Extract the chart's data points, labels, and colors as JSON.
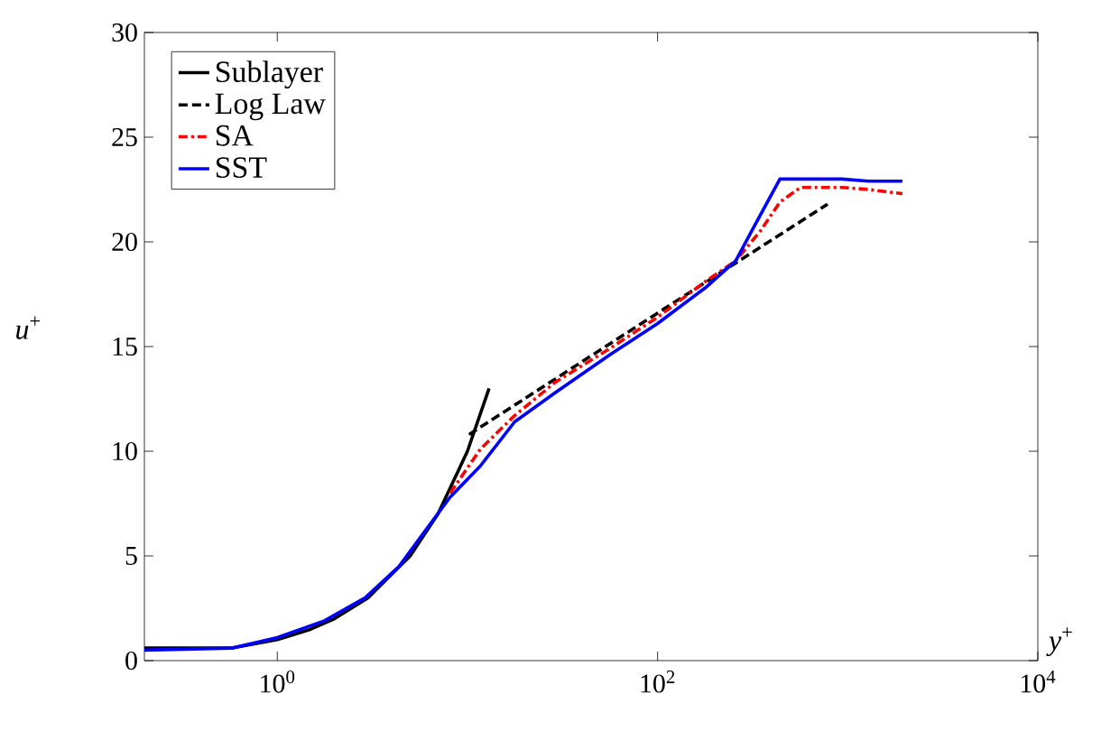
{
  "chart_data": {
    "type": "line",
    "xlabel": "*y*$^{+}$",
    "ylabel": "*u*$^{+}$",
    "log": "x",
    "xlim": [
      0.2,
      10000
    ],
    "ylim": [
      0,
      30
    ],
    "xticks": [
      {
        "value": 1,
        "label": "10$^{0}$"
      },
      {
        "value": 100,
        "label": "10$^{2}$"
      },
      {
        "value": 10000,
        "label": "10$^{4}$"
      }
    ],
    "yticks": [
      0,
      5,
      10,
      15,
      20,
      25,
      30
    ],
    "grid": false,
    "legend": "top left",
    "series": [
      {
        "name": "Sublayer",
        "color": "#000000",
        "line_style": "solid",
        "x": [
          0.2,
          0.58,
          1,
          1.5,
          2,
          3,
          5,
          7,
          10,
          13
        ],
        "values": [
          0.6,
          0.6,
          1,
          1.5,
          2,
          3,
          5,
          7,
          10,
          13
        ]
      },
      {
        "name": "Log Law",
        "color": "#000000",
        "line_style": "dashed",
        "x": [
          10.2,
          100,
          784
        ],
        "values": [
          10.8,
          16.6,
          21.8
        ]
      },
      {
        "name": "SA",
        "color": "#ff0000",
        "line_style": "dashdot",
        "x": [
          8.1,
          11.7,
          17.7,
          29,
          56,
          100,
          178,
          258,
          346,
          440,
          565,
          930,
          1290,
          1940
        ],
        "values": [
          8.0,
          10.1,
          11.7,
          13.3,
          14.9,
          16.4,
          18.1,
          19.1,
          20.5,
          21.9,
          22.6,
          22.6,
          22.5,
          22.3
        ]
      },
      {
        "name": "SST",
        "color": "#0000ff",
        "line_style": "solid",
        "x": [
          0.2,
          0.58,
          1,
          1.77,
          2.9,
          4.37,
          6.0,
          8.1,
          11.7,
          17.7,
          29,
          56,
          100,
          178,
          258,
          316,
          440,
          565,
          930,
          1290,
          1940
        ],
        "values": [
          0.5,
          0.6,
          1.1,
          1.9,
          3.0,
          4.5,
          6.2,
          7.8,
          9.3,
          11.4,
          12.8,
          14.6,
          16.1,
          17.8,
          19.1,
          20.6,
          23.0,
          23.0,
          23.0,
          22.9,
          22.9
        ]
      }
    ]
  }
}
